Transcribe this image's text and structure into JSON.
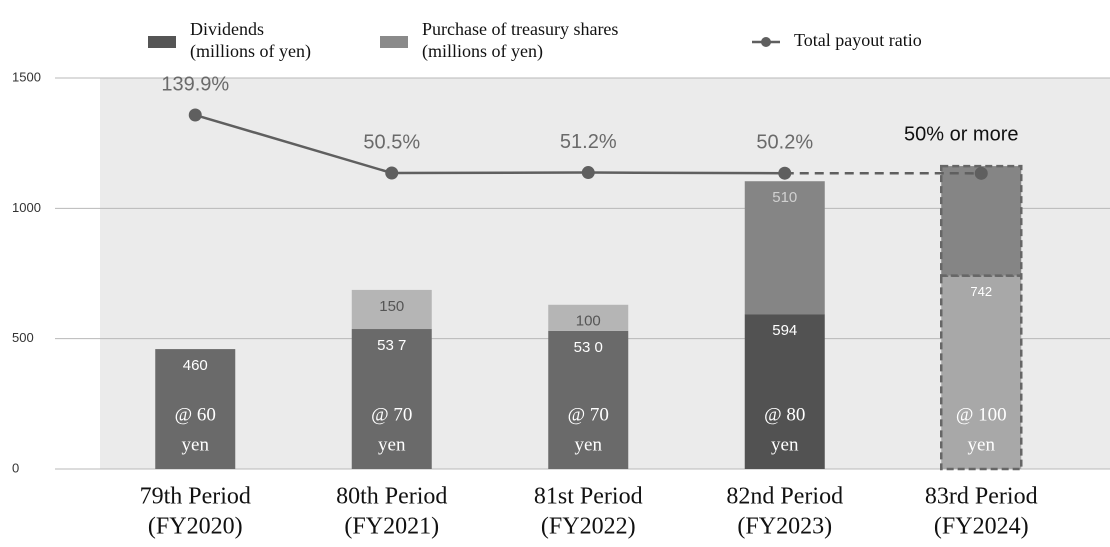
{
  "chart_data": {
    "type": "stacked_bar_line",
    "categories": [
      [
        "79th Period",
        "(FY2020)"
      ],
      [
        "80th Period",
        "(FY2021)"
      ],
      [
        "81st Period",
        "(FY2022)"
      ],
      [
        "82nd Period",
        "(FY2023)"
      ],
      [
        "83rd Period",
        "(FY2024)"
      ]
    ],
    "bar_notes": [
      [
        "@ 60",
        "yen"
      ],
      [
        "@ 70",
        "yen"
      ],
      [
        "@ 70",
        "yen"
      ],
      [
        "@ 80",
        "yen"
      ],
      [
        "@ 100",
        "yen"
      ]
    ],
    "series": [
      {
        "name": [
          "Dividends",
          "(millions of yen)"
        ],
        "color": "#555555",
        "colors": [
          "#6a6a6a",
          "#6a6a6a",
          "#6a6a6a",
          "#525252",
          "#a8a8a8"
        ],
        "dashed": [
          false,
          false,
          false,
          false,
          true
        ],
        "label_color": "#ffffff",
        "values": [
          460,
          537,
          530,
          594,
          742
        ],
        "value_labels": [
          "460",
          "53 7",
          "53 0",
          "594",
          "742"
        ]
      },
      {
        "name": [
          "Purchase of treasury shares",
          "(millions of yen)"
        ],
        "color": "#8a8a8a",
        "colors": [
          "#b5b5b5",
          "#b5b5b5",
          "#b5b5b5",
          "#858585",
          "#858585"
        ],
        "dashed": [
          false,
          false,
          false,
          false,
          true
        ],
        "label_colors": [
          "#555555",
          "#555555",
          "#555555",
          "#d0d0d0",
          "#d0d0d0"
        ],
        "values": [
          null,
          150,
          100,
          510,
          420
        ],
        "value_labels": [
          null,
          "150",
          "100",
          "510",
          null
        ]
      },
      {
        "name": [
          "Total payout ratio"
        ],
        "type": "line",
        "axis": "y2",
        "color": "#5f5f5f",
        "dashed": [
          false,
          false,
          false,
          false,
          true
        ],
        "values": [
          139.9,
          50.5,
          51.2,
          50.2,
          50
        ],
        "value_labels": [
          "139.9%",
          "50.5%",
          "51.2%",
          "50.2%",
          "50% or more"
        ]
      }
    ],
    "ylim": [
      0,
      1500
    ],
    "yticks": [
      0,
      500,
      1000,
      1500
    ],
    "y2lim": [
      -406,
      197
    ],
    "grid": true,
    "background": "#ebebeb"
  }
}
